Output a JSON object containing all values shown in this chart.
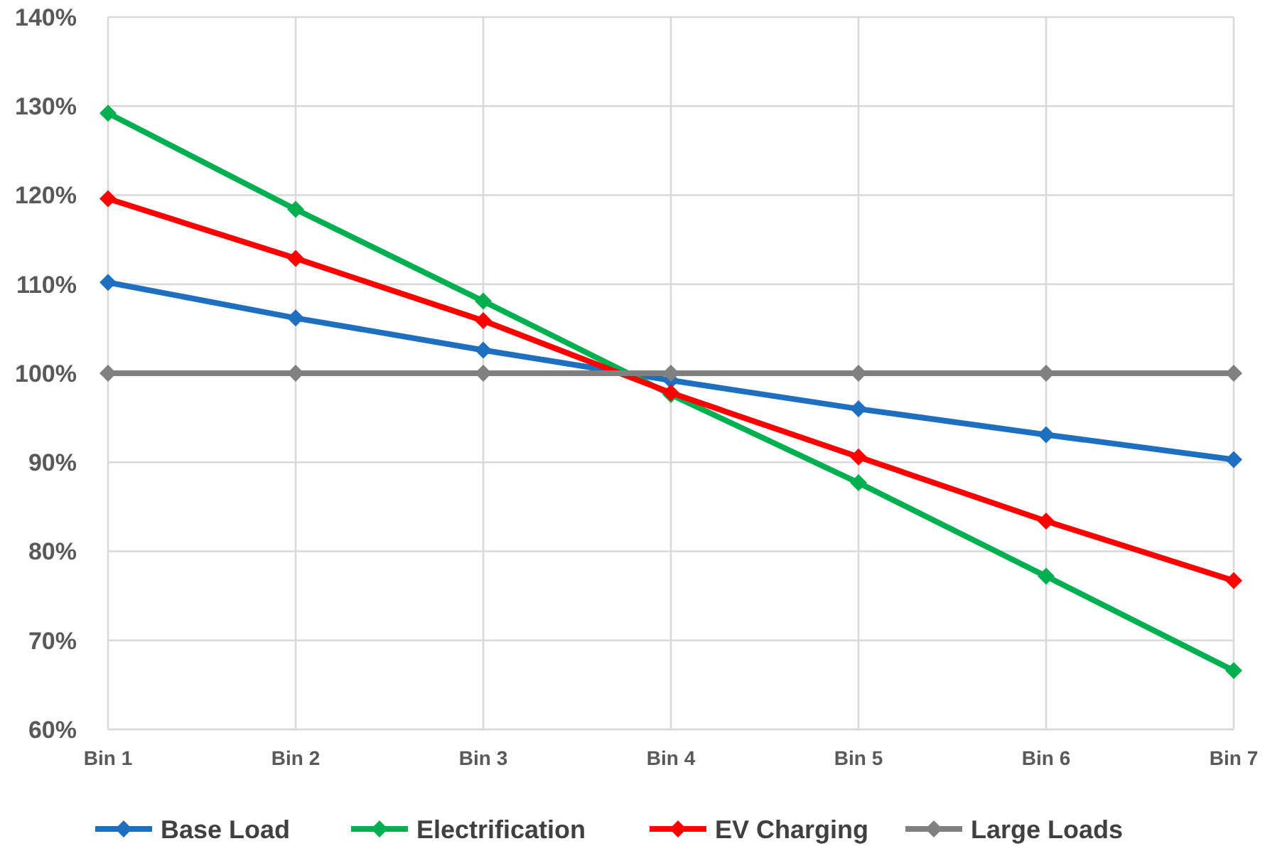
{
  "chart_data": {
    "type": "line",
    "categories": [
      "Bin 1",
      "Bin 2",
      "Bin 3",
      "Bin 4",
      "Bin 5",
      "Bin 6",
      "Bin 7"
    ],
    "series": [
      {
        "name": "Base Load",
        "color": "#1f6fc1",
        "values": [
          110.2,
          106.2,
          102.6,
          99.2,
          96.0,
          93.1,
          90.3
        ]
      },
      {
        "name": "Electrification",
        "color": "#00b050",
        "values": [
          129.2,
          118.4,
          108.1,
          97.6,
          87.7,
          77.2,
          66.6
        ]
      },
      {
        "name": "EV Charging",
        "color": "#ff0000",
        "values": [
          119.6,
          112.9,
          105.9,
          97.8,
          90.6,
          83.4,
          76.7
        ]
      },
      {
        "name": "Large Loads",
        "color": "#808080",
        "values": [
          100,
          100,
          100,
          100,
          100,
          100,
          100
        ]
      }
    ],
    "ylim": [
      60,
      140
    ],
    "yticks": [
      {
        "value": 60,
        "label": "60%"
      },
      {
        "value": 70,
        "label": "70%"
      },
      {
        "value": 80,
        "label": "80%"
      },
      {
        "value": 90,
        "label": "90%"
      },
      {
        "value": 100,
        "label": "100%"
      },
      {
        "value": 110,
        "label": "110%"
      },
      {
        "value": 120,
        "label": "120%"
      },
      {
        "value": 130,
        "label": "130%"
      },
      {
        "value": 140,
        "label": "140%"
      }
    ],
    "grid": true,
    "legend": "bottom",
    "marker": "diamond",
    "line_style": "solid"
  }
}
